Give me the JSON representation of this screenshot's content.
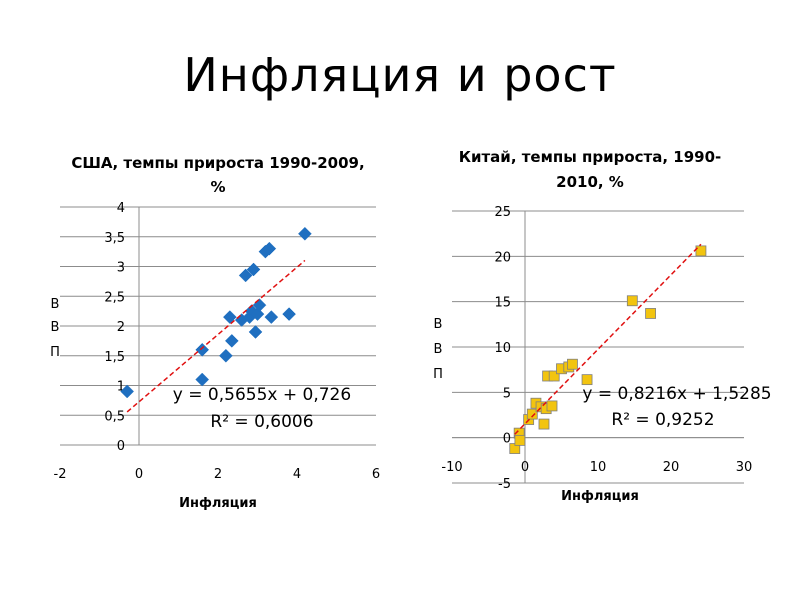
{
  "slide": {
    "title": "Инфляция и рост"
  },
  "chart_data": [
    {
      "type": "scatter",
      "title_lines": [
        "США, темпы прироста 1990-2009,",
        "%"
      ],
      "xlabel": "Инфляция",
      "ylabel_chars": [
        "В",
        "В",
        "П"
      ],
      "xlim": [
        -2,
        6
      ],
      "ylim": [
        0,
        4
      ],
      "xticks": [
        -2,
        0,
        2,
        4,
        6
      ],
      "xtick_labels": [
        "-2",
        "0",
        "2",
        "4",
        "6"
      ],
      "yticks": [
        0,
        0.5,
        1,
        1.5,
        2,
        2.5,
        3,
        3.5,
        4
      ],
      "ytick_labels": [
        "0",
        "0,5",
        "1",
        "1,5",
        "2",
        "2,5",
        "3",
        "3,5",
        "4"
      ],
      "grid": true,
      "marker": "diamond",
      "marker_color": "#1F6FC0",
      "trend_color": "#E01010",
      "points": [
        [
          -0.3,
          0.9
        ],
        [
          1.6,
          1.1
        ],
        [
          1.6,
          1.6
        ],
        [
          2.2,
          1.5
        ],
        [
          2.3,
          2.15
        ],
        [
          2.35,
          1.75
        ],
        [
          2.6,
          2.1
        ],
        [
          2.7,
          2.85
        ],
        [
          2.8,
          2.15
        ],
        [
          2.85,
          2.25
        ],
        [
          2.9,
          2.95
        ],
        [
          2.95,
          1.9
        ],
        [
          3.0,
          2.2
        ],
        [
          3.05,
          2.35
        ],
        [
          3.2,
          3.25
        ],
        [
          3.3,
          3.3
        ],
        [
          3.35,
          2.15
        ],
        [
          3.8,
          2.2
        ],
        [
          4.2,
          3.55
        ]
      ],
      "trendline": {
        "slope": 0.5655,
        "intercept": 0.726,
        "x_range": [
          -0.3,
          4.2
        ]
      },
      "equation": "y = 0,5655x + 0,726",
      "r2": "R² = 0,6006"
    },
    {
      "type": "scatter",
      "title_lines": [
        "Китай, темпы прироста, 1990-",
        "2010, %"
      ],
      "xlabel": "Инфляция",
      "ylabel_chars": [
        "В",
        "В",
        "П"
      ],
      "xlim": [
        -10,
        30
      ],
      "ylim": [
        -5,
        25
      ],
      "xticks": [
        -10,
        0,
        10,
        20,
        30
      ],
      "xtick_labels": [
        "-10",
        "0",
        "10",
        "20",
        "30"
      ],
      "yticks": [
        -5,
        0,
        5,
        10,
        15,
        20,
        25
      ],
      "ytick_labels": [
        "-5",
        "0",
        "5",
        "10",
        "15",
        "20",
        "25"
      ],
      "grid": true,
      "marker": "square",
      "marker_color": "#F2C40F",
      "trend_color": "#E01010",
      "points": [
        [
          -1.4,
          -1.2
        ],
        [
          -0.8,
          0.5
        ],
        [
          -0.7,
          -0.3
        ],
        [
          0.5,
          2.0
        ],
        [
          1.0,
          2.6
        ],
        [
          1.5,
          3.8
        ],
        [
          2.2,
          3.4
        ],
        [
          2.6,
          1.5
        ],
        [
          2.9,
          3.2
        ],
        [
          3.1,
          6.8
        ],
        [
          3.7,
          3.5
        ],
        [
          4.0,
          6.8
        ],
        [
          5.0,
          7.6
        ],
        [
          6.0,
          7.8
        ],
        [
          6.5,
          8.1
        ],
        [
          8.5,
          6.4
        ],
        [
          14.7,
          15.1
        ],
        [
          17.2,
          13.7
        ],
        [
          24.1,
          20.6
        ]
      ],
      "trendline": {
        "slope": 0.8216,
        "intercept": 1.5285,
        "x_range": [
          -1.4,
          24.1
        ]
      },
      "equation": "y = 0,8216x + 1,5285",
      "r2": "R² = 0,9252"
    }
  ]
}
